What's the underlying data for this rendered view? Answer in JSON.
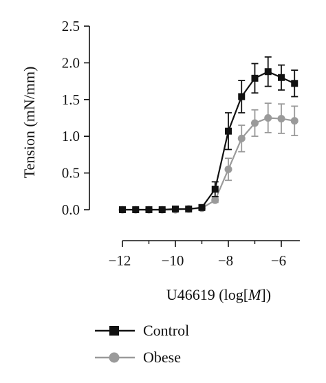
{
  "chart_data": {
    "type": "line",
    "xlabel": "U46619 (log[M])",
    "xlabel_parts": {
      "before": "U46619 (log[",
      "italic": "M",
      "after": "])"
    },
    "ylabel": "Tension (mN/mm)",
    "xlim": [
      -12,
      -5.3
    ],
    "ylim": [
      0,
      2.5
    ],
    "x_ticks": [
      -12,
      -10,
      -8,
      -6
    ],
    "x_tick_labels": [
      "−12",
      "−10",
      "−8",
      "−6"
    ],
    "y_ticks": [
      0,
      0.5,
      1.0,
      1.5,
      2.0,
      2.5
    ],
    "y_tick_labels": [
      "0.0",
      "0.5",
      "1.0",
      "1.5",
      "2.0",
      "2.5"
    ],
    "x_minor_ticks": [
      -11,
      -9,
      -7
    ],
    "x": [
      -12,
      -11.5,
      -11,
      -10.5,
      -10,
      -9.5,
      -9,
      -8.5,
      -8,
      -7.5,
      -7,
      -6.5,
      -6,
      -5.5
    ],
    "series": [
      {
        "name": "Control",
        "color": "#111111",
        "marker": "square",
        "values": [
          0.0,
          0.0,
          0.0,
          0.0,
          0.01,
          0.01,
          0.03,
          0.28,
          1.07,
          1.54,
          1.79,
          1.88,
          1.8,
          1.72
        ],
        "errors": [
          0.01,
          0.01,
          0.01,
          0.01,
          0.01,
          0.01,
          0.02,
          0.1,
          0.25,
          0.22,
          0.2,
          0.2,
          0.17,
          0.18
        ]
      },
      {
        "name": "Obese",
        "color": "#9a9a9a",
        "marker": "circle",
        "values": [
          0.0,
          0.0,
          0.0,
          0.0,
          0.0,
          0.01,
          0.02,
          0.13,
          0.55,
          0.97,
          1.18,
          1.25,
          1.24,
          1.21
        ],
        "errors": [
          0.01,
          0.01,
          0.01,
          0.01,
          0.01,
          0.01,
          0.01,
          0.03,
          0.15,
          0.18,
          0.18,
          0.2,
          0.2,
          0.2
        ]
      }
    ],
    "legend_position": "bottom-left",
    "grid": false
  }
}
